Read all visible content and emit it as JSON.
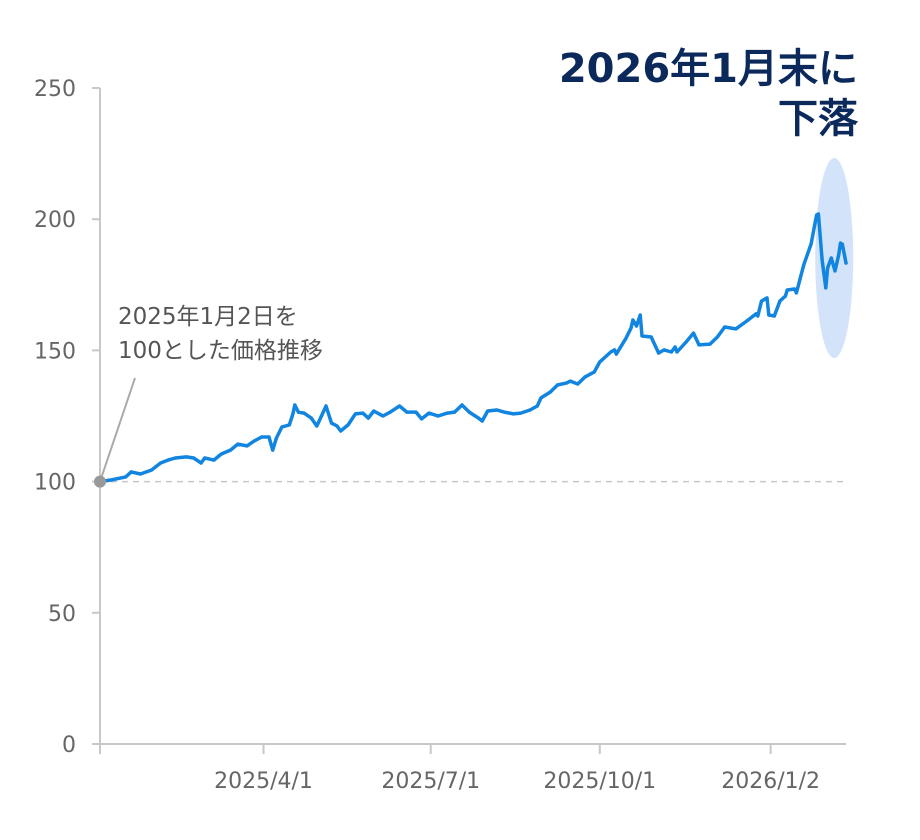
{
  "chart_data": {
    "type": "line",
    "title": [
      "2026年1月末に",
      "下落"
    ],
    "annotation": [
      "2025年1月2日を",
      "100とした価格推移"
    ],
    "xlabel": "",
    "ylabel": "",
    "ylim": [
      0,
      250
    ],
    "xlim": [
      "2025-01-02",
      "2026-02-12"
    ],
    "yticks": [
      0,
      50,
      100,
      150,
      200,
      250
    ],
    "xticks": [
      {
        "date": "2025-04-01",
        "label": "2025/4/1"
      },
      {
        "date": "2025-07-01",
        "label": "2025/7/1"
      },
      {
        "date": "2025-10-01",
        "label": "2025/10/1"
      },
      {
        "date": "2026-01-02",
        "label": "2026/1/2"
      }
    ],
    "reference_line": 100,
    "highlight_range": [
      "2026-01-28",
      "2026-02-12"
    ],
    "grid": false,
    "colors": {
      "line": "#1185e0",
      "highlight": "#d3e4fa",
      "title": "#0b2a5b",
      "reference": "#c8c8c8",
      "base_point": "#999999"
    },
    "x": [
      "2025-01-02",
      "2025-01-08",
      "2025-01-16",
      "2025-01-19",
      "2025-01-24",
      "2025-01-30",
      "2025-02-04",
      "2025-02-08",
      "2025-02-12",
      "2025-02-18",
      "2025-02-22",
      "2025-02-26",
      "2025-02-28",
      "2025-03-05",
      "2025-03-09",
      "2025-03-14",
      "2025-03-18",
      "2025-03-23",
      "2025-03-27",
      "2025-03-31",
      "2025-04-04",
      "2025-04-06",
      "2025-04-08",
      "2025-04-11",
      "2025-04-15",
      "2025-04-17",
      "2025-04-18",
      "2025-04-20",
      "2025-04-23",
      "2025-04-27",
      "2025-04-30",
      "2025-05-02",
      "2025-05-05",
      "2025-05-08",
      "2025-05-11",
      "2025-05-13",
      "2025-05-17",
      "2025-05-21",
      "2025-05-25",
      "2025-05-28",
      "2025-05-31",
      "2025-06-05",
      "2025-06-09",
      "2025-06-14",
      "2025-06-18",
      "2025-06-23",
      "2025-06-26",
      "2025-06-30",
      "2025-07-05",
      "2025-07-10",
      "2025-07-14",
      "2025-07-18",
      "2025-07-22",
      "2025-07-27",
      "2025-07-29",
      "2025-08-01",
      "2025-08-06",
      "2025-08-10",
      "2025-08-15",
      "2025-08-19",
      "2025-08-24",
      "2025-08-28",
      "2025-08-30",
      "2025-09-04",
      "2025-09-08",
      "2025-09-13",
      "2025-09-15",
      "2025-09-19",
      "2025-09-23",
      "2025-09-28",
      "2025-10-01",
      "2025-10-07",
      "2025-10-09",
      "2025-10-10",
      "2025-10-15",
      "2025-10-18",
      "2025-10-19",
      "2025-10-21",
      "2025-10-23",
      "2025-10-24",
      "2025-10-29",
      "2025-11-02",
      "2025-11-05",
      "2025-11-09",
      "2025-11-11",
      "2025-11-12",
      "2025-11-17",
      "2025-11-21",
      "2025-11-24",
      "2025-11-30",
      "2025-12-04",
      "2025-12-08",
      "2025-12-14",
      "2025-12-20",
      "2025-12-25",
      "2025-12-26",
      "2025-12-28",
      "2025-12-31",
      "2026-01-01",
      "2026-01-04",
      "2026-01-07",
      "2026-01-10",
      "2026-01-11",
      "2026-01-15",
      "2026-01-16",
      "2026-01-20",
      "2026-01-24",
      "2026-01-27",
      "2026-01-28",
      "2026-01-30",
      "2026-02-01",
      "2026-02-02",
      "2026-02-04",
      "2026-02-06",
      "2026-02-08",
      "2026-02-09",
      "2026-02-10",
      "2026-02-12"
    ],
    "values": [
      100.0,
      100.6,
      101.8,
      103.7,
      102.9,
      104.4,
      107.1,
      108.2,
      109.0,
      109.4,
      109.0,
      107.1,
      109.0,
      108.2,
      110.5,
      112.0,
      114.3,
      113.6,
      115.5,
      117.0,
      117.0,
      112.0,
      116.6,
      120.8,
      121.6,
      125.8,
      129.2,
      126.5,
      126.1,
      124.2,
      121.2,
      124.2,
      128.8,
      122.3,
      121.2,
      119.3,
      121.6,
      125.8,
      126.1,
      124.2,
      126.9,
      125.0,
      126.5,
      128.8,
      126.5,
      126.5,
      123.9,
      126.1,
      125.0,
      126.1,
      126.5,
      129.2,
      126.5,
      124.2,
      123.1,
      126.9,
      127.3,
      126.5,
      125.8,
      126.1,
      127.3,
      128.8,
      131.9,
      134.1,
      136.8,
      137.6,
      138.3,
      137.2,
      139.9,
      141.8,
      145.6,
      149.4,
      150.2,
      148.6,
      154.3,
      158.5,
      161.6,
      159.3,
      163.5,
      155.5,
      155.1,
      149.0,
      150.2,
      149.4,
      151.3,
      149.4,
      153.2,
      156.6,
      152.1,
      152.4,
      155.1,
      158.9,
      158.2,
      161.2,
      163.9,
      163.1,
      168.8,
      170.0,
      163.5,
      163.1,
      168.8,
      170.7,
      173.0,
      173.4,
      171.9,
      182.5,
      190.6,
      201.6,
      202.0,
      184.5,
      173.8,
      181.4,
      185.2,
      180.3,
      186.4,
      190.9,
      190.5,
      183.3
    ]
  }
}
